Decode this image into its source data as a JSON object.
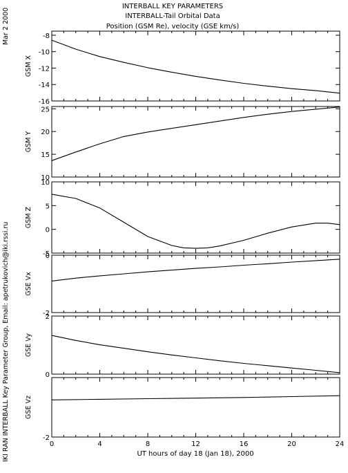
{
  "header": {
    "date": "Mar  2 2000",
    "side_caption": "IKI RAN INTERBALL Key Parameter Group, Email: apetrukovich@iki.rssi.ru"
  },
  "chart_data": {
    "type": "line",
    "title": [
      "INTERBALL KEY PARAMETERS",
      "INTERBALL-Tail Orbital Data",
      "Position (GSM Re), velocity (GSE km/s)"
    ],
    "xlabel": "UT hours of day  18 (Jan 18), 2000",
    "xlim": [
      0,
      24
    ],
    "xticks": [
      "0",
      "4",
      "8",
      "12",
      "16",
      "20",
      "24"
    ],
    "panels": [
      {
        "ylabel": "GSM X",
        "ylim": [
          -16,
          -7.5
        ],
        "yticks": [
          "-8",
          "-10",
          "-12",
          "-14",
          "-16"
        ],
        "series": [
          {
            "x": [
              0,
              2,
              4,
              6,
              8,
              10,
              12,
              14,
              16,
              18,
              20,
              22,
              24
            ],
            "y": [
              -8.6,
              -9.7,
              -10.6,
              -11.3,
              -11.95,
              -12.5,
              -13.0,
              -13.45,
              -13.85,
              -14.2,
              -14.5,
              -14.75,
              -15.05
            ]
          }
        ]
      },
      {
        "ylabel": "GSM Y",
        "ylim": [
          10,
          25.5
        ],
        "yticks": [
          "25",
          "20",
          "15",
          "10"
        ],
        "series": [
          {
            "x": [
              0,
              2,
              4,
              6,
              8,
              10,
              12,
              14,
              16,
              18,
              20,
              22,
              24
            ],
            "y": [
              13.6,
              15.5,
              17.3,
              18.9,
              19.9,
              20.7,
              21.5,
              22.3,
              23.1,
              23.8,
              24.4,
              24.9,
              25.4
            ]
          }
        ]
      },
      {
        "ylabel": "GSM Z",
        "ylim": [
          -5,
          10
        ],
        "yticks": [
          "10",
          "5",
          "0",
          "-5"
        ],
        "series": [
          {
            "x": [
              0,
              2,
              4,
              6,
              8,
              10,
              11,
              12,
              13,
              14,
              16,
              18,
              20,
              22,
              23,
              24
            ],
            "y": [
              7.4,
              6.5,
              4.5,
              1.5,
              -1.5,
              -3.4,
              -3.9,
              -4.0,
              -3.9,
              -3.5,
              -2.3,
              -0.8,
              0.5,
              1.3,
              1.3,
              1.0
            ]
          }
        ]
      },
      {
        "ylabel": "GSE Vx",
        "ylim": [
          -2,
          0
        ],
        "yticks": [
          "0",
          "-2"
        ],
        "series": [
          {
            "x": [
              0,
              2,
              4,
              6,
              8,
              10,
              12,
              14,
              16,
              18,
              20,
              22,
              24
            ],
            "y": [
              -0.9,
              -0.8,
              -0.72,
              -0.65,
              -0.58,
              -0.52,
              -0.46,
              -0.41,
              -0.35,
              -0.3,
              -0.24,
              -0.19,
              -0.14
            ]
          }
        ]
      },
      {
        "ylabel": "GSE Vy",
        "ylim": [
          0,
          2
        ],
        "yticks": [
          "2",
          "0"
        ],
        "series": [
          {
            "x": [
              0,
              2,
              4,
              6,
              8,
              10,
              12,
              14,
              16,
              18,
              20,
              22,
              24
            ],
            "y": [
              1.33,
              1.16,
              1.01,
              0.89,
              0.77,
              0.66,
              0.56,
              0.46,
              0.37,
              0.29,
              0.21,
              0.13,
              0.05
            ]
          }
        ]
      },
      {
        "ylabel": "GSE Vz",
        "ylim": [
          -2,
          0
        ],
        "yticks": [
          "-2"
        ],
        "series": [
          {
            "x": [
              0,
              4,
              8,
              12,
              16,
              20,
              24
            ],
            "y": [
              -0.75,
              -0.73,
              -0.71,
              -0.69,
              -0.67,
              -0.64,
              -0.61
            ]
          }
        ]
      }
    ]
  }
}
